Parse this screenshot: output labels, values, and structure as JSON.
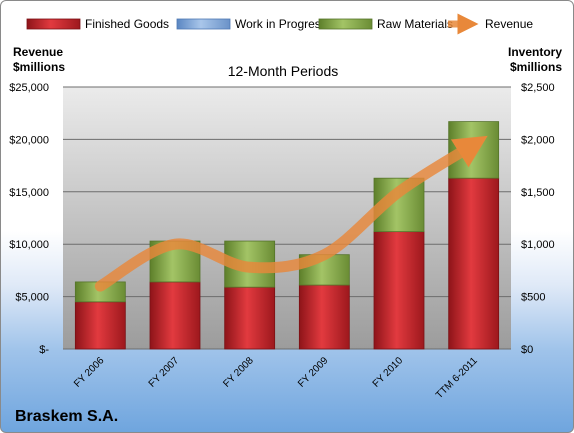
{
  "chart_data": {
    "type": "bar",
    "stacked": true,
    "title": "12-Month Periods",
    "categories": [
      "FY 2006",
      "FY 2007",
      "FY 2008",
      "FY 2009",
      "FY 2010",
      "TTM 6-2011"
    ],
    "series": [
      {
        "name": "Finished Goods",
        "axis": "inventory",
        "color": "#c0272d",
        "values": [
          450,
          640,
          590,
          610,
          1120,
          1630
        ]
      },
      {
        "name": "Work in Progress",
        "axis": "inventory",
        "color": "#7fa6d6",
        "values": [
          0,
          0,
          0,
          0,
          0,
          0
        ]
      },
      {
        "name": "Raw Materials",
        "axis": "inventory",
        "color": "#8db04e",
        "values": [
          190,
          390,
          440,
          290,
          510,
          540
        ]
      },
      {
        "name": "Revenue",
        "axis": "revenue",
        "type": "line",
        "color": "#e8883a",
        "values": [
          6000,
          10000,
          7800,
          9000,
          15000,
          19500
        ]
      }
    ],
    "left_axis": {
      "label_line1": "Revenue",
      "label_line2": "$millions",
      "ylim": [
        0,
        25000
      ],
      "ticks": [
        "$-",
        "$5,000",
        "$10,000",
        "$15,000",
        "$20,000",
        "$25,000"
      ]
    },
    "right_axis": {
      "label_line1": "Inventory",
      "label_line2": "$millions",
      "ylim": [
        0,
        2500
      ],
      "ticks": [
        "$0",
        "$500",
        "$1,000",
        "$1,500",
        "$2,000",
        "$2,500"
      ]
    },
    "legend_position": "top",
    "grid": true
  },
  "company": "Braskem S.A."
}
